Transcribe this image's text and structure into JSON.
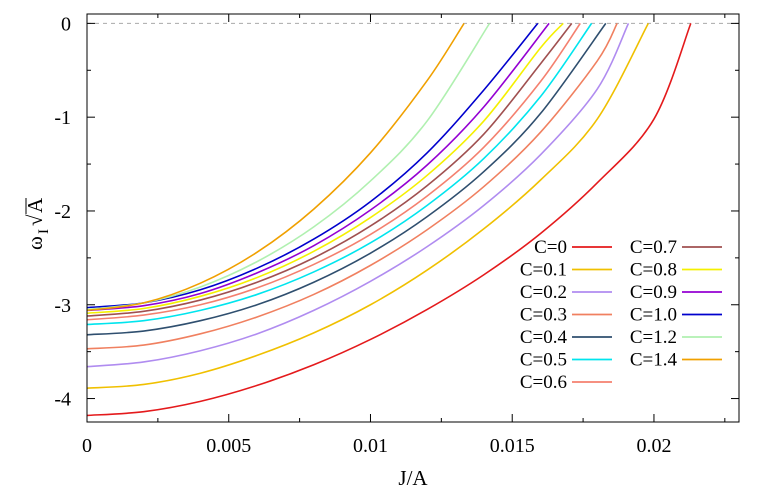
{
  "chart_data": {
    "type": "line",
    "title": "",
    "xlabel": "J/A",
    "ylabel_parts": {
      "omega": "ω",
      "subscript": "I",
      "root_symbol": "√",
      "root_arg": "A"
    },
    "xlim": [
      0,
      0.023
    ],
    "ylim": [
      -4.25,
      0.1
    ],
    "xticks": [
      0,
      0.005,
      0.01,
      0.015,
      0.02
    ],
    "xtick_labels": [
      "0",
      "0.005",
      "0.01",
      "0.015",
      "0.02"
    ],
    "yticks": [
      0,
      -1,
      -2,
      -3,
      -4
    ],
    "ytick_labels": [
      "0",
      "-1",
      "-2",
      "-3",
      "-4"
    ],
    "reference_line": {
      "y": 0,
      "style": "dashed",
      "color": "#aaaaaa"
    },
    "grid": false,
    "legend_placement": "bottom-right, two columns",
    "series": [
      {
        "name": "C=0",
        "color": "#e41a1c",
        "points": [
          [
            0,
            -4.18
          ],
          [
            0.002,
            -4.14
          ],
          [
            0.004,
            -4.03
          ],
          [
            0.006,
            -3.86
          ],
          [
            0.008,
            -3.64
          ],
          [
            0.01,
            -3.37
          ],
          [
            0.012,
            -3.05
          ],
          [
            0.014,
            -2.68
          ],
          [
            0.016,
            -2.24
          ],
          [
            0.018,
            -1.7
          ],
          [
            0.02,
            -1.02
          ],
          [
            0.0213,
            0
          ]
        ]
      },
      {
        "name": "C=0.1",
        "color": "#f0c000",
        "points": [
          [
            0,
            -3.89
          ],
          [
            0.002,
            -3.85
          ],
          [
            0.004,
            -3.73
          ],
          [
            0.006,
            -3.54
          ],
          [
            0.008,
            -3.3
          ],
          [
            0.01,
            -3.0
          ],
          [
            0.012,
            -2.63
          ],
          [
            0.014,
            -2.19
          ],
          [
            0.016,
            -1.67
          ],
          [
            0.018,
            -1.02
          ],
          [
            0.0198,
            0
          ]
        ]
      },
      {
        "name": "C=0.2",
        "color": "#b08cf0",
        "points": [
          [
            0,
            -3.66
          ],
          [
            0.002,
            -3.61
          ],
          [
            0.004,
            -3.49
          ],
          [
            0.006,
            -3.31
          ],
          [
            0.008,
            -3.06
          ],
          [
            0.01,
            -2.75
          ],
          [
            0.012,
            -2.38
          ],
          [
            0.014,
            -1.94
          ],
          [
            0.016,
            -1.4
          ],
          [
            0.018,
            -0.7
          ],
          [
            0.0191,
            0
          ]
        ]
      },
      {
        "name": "C=0.3",
        "color": "#f08060",
        "points": [
          [
            0,
            -3.47
          ],
          [
            0.002,
            -3.43
          ],
          [
            0.004,
            -3.31
          ],
          [
            0.006,
            -3.13
          ],
          [
            0.008,
            -2.89
          ],
          [
            0.01,
            -2.58
          ],
          [
            0.012,
            -2.2
          ],
          [
            0.014,
            -1.74
          ],
          [
            0.016,
            -1.16
          ],
          [
            0.018,
            -0.4
          ],
          [
            0.0187,
            0
          ]
        ]
      },
      {
        "name": "C=0.4",
        "color": "#2f4f6f",
        "points": [
          [
            0,
            -3.32
          ],
          [
            0.002,
            -3.28
          ],
          [
            0.004,
            -3.17
          ],
          [
            0.006,
            -3.0
          ],
          [
            0.008,
            -2.76
          ],
          [
            0.01,
            -2.45
          ],
          [
            0.012,
            -2.06
          ],
          [
            0.014,
            -1.58
          ],
          [
            0.016,
            -0.96
          ],
          [
            0.0183,
            0
          ]
        ]
      },
      {
        "name": "C=0.5",
        "color": "#00e5ee",
        "points": [
          [
            0,
            -3.21
          ],
          [
            0.002,
            -3.17
          ],
          [
            0.004,
            -3.06
          ],
          [
            0.006,
            -2.89
          ],
          [
            0.008,
            -2.65
          ],
          [
            0.01,
            -2.34
          ],
          [
            0.012,
            -1.94
          ],
          [
            0.014,
            -1.44
          ],
          [
            0.016,
            -0.78
          ],
          [
            0.0178,
            0
          ]
        ]
      },
      {
        "name": "C=0.6",
        "color": "#f4806f",
        "points": [
          [
            0,
            -3.16
          ],
          [
            0.002,
            -3.11
          ],
          [
            0.004,
            -3.0
          ],
          [
            0.006,
            -2.82
          ],
          [
            0.008,
            -2.57
          ],
          [
            0.01,
            -2.25
          ],
          [
            0.012,
            -1.84
          ],
          [
            0.014,
            -1.32
          ],
          [
            0.016,
            -0.62
          ],
          [
            0.0174,
            0
          ]
        ]
      },
      {
        "name": "C=0.7",
        "color": "#a05050",
        "points": [
          [
            0,
            -3.12
          ],
          [
            0.002,
            -3.07
          ],
          [
            0.004,
            -2.95
          ],
          [
            0.006,
            -2.76
          ],
          [
            0.008,
            -2.5
          ],
          [
            0.01,
            -2.16
          ],
          [
            0.012,
            -1.73
          ],
          [
            0.014,
            -1.18
          ],
          [
            0.016,
            -0.43
          ],
          [
            0.0171,
            0
          ]
        ]
      },
      {
        "name": "C=0.8",
        "color": "#f5f000",
        "points": [
          [
            0,
            -3.09
          ],
          [
            0.002,
            -3.04
          ],
          [
            0.004,
            -2.91
          ],
          [
            0.006,
            -2.71
          ],
          [
            0.008,
            -2.43
          ],
          [
            0.01,
            -2.07
          ],
          [
            0.012,
            -1.62
          ],
          [
            0.014,
            -1.04
          ],
          [
            0.016,
            -0.26
          ],
          [
            0.0168,
            0
          ]
        ]
      },
      {
        "name": "C=0.9",
        "color": "#9400d3",
        "points": [
          [
            0,
            -3.06
          ],
          [
            0.002,
            -3.01
          ],
          [
            0.004,
            -2.88
          ],
          [
            0.006,
            -2.66
          ],
          [
            0.008,
            -2.37
          ],
          [
            0.01,
            -1.99
          ],
          [
            0.012,
            -1.51
          ],
          [
            0.014,
            -0.89
          ],
          [
            0.0163,
            0
          ]
        ]
      },
      {
        "name": "C=1.0",
        "color": "#0000cd",
        "points": [
          [
            0,
            -3.03
          ],
          [
            0.002,
            -2.98
          ],
          [
            0.004,
            -2.84
          ],
          [
            0.006,
            -2.61
          ],
          [
            0.008,
            -2.3
          ],
          [
            0.01,
            -1.9
          ],
          [
            0.012,
            -1.38
          ],
          [
            0.014,
            -0.71
          ],
          [
            0.0159,
            0
          ]
        ]
      },
      {
        "name": "C=1.2",
        "color": "#b0f0b0",
        "points": [
          [
            0,
            -3.05
          ],
          [
            0.002,
            -2.98
          ],
          [
            0.004,
            -2.81
          ],
          [
            0.006,
            -2.54
          ],
          [
            0.008,
            -2.17
          ],
          [
            0.01,
            -1.68
          ],
          [
            0.012,
            -1.04
          ],
          [
            0.0142,
            0
          ]
        ]
      },
      {
        "name": "C=1.4",
        "color": "#f0a000",
        "points": [
          [
            0,
            -3.06
          ],
          [
            0.002,
            -2.98
          ],
          [
            0.004,
            -2.77
          ],
          [
            0.006,
            -2.44
          ],
          [
            0.008,
            -1.98
          ],
          [
            0.01,
            -1.38
          ],
          [
            0.012,
            -0.61
          ],
          [
            0.0133,
            0
          ]
        ]
      }
    ]
  }
}
